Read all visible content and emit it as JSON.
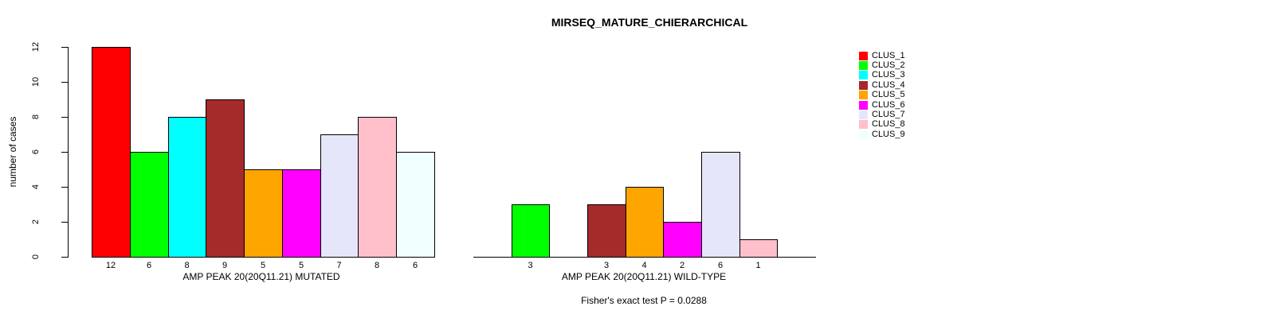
{
  "title": "MIRSEQ_MATURE_CHIERARCHICAL",
  "chart_data": [
    {
      "type": "bar",
      "panel": "mutated",
      "categories": [
        "CLUS_1",
        "CLUS_2",
        "CLUS_3",
        "CLUS_4",
        "CLUS_5",
        "CLUS_6",
        "CLUS_7",
        "CLUS_8",
        "CLUS_9"
      ],
      "values": [
        12,
        6,
        8,
        9,
        5,
        5,
        7,
        8,
        6
      ],
      "bar_labels": [
        "12",
        "6",
        "8",
        "9",
        "5",
        "5",
        "7",
        "8",
        "6"
      ],
      "colors": [
        "#FF0000",
        "#00FF00",
        "#00FFFF",
        "#A52A2A",
        "#FFA500",
        "#FF00FF",
        "#E6E6FA",
        "#FFC0CB",
        "#F0FFFF"
      ],
      "xlabel": "AMP PEAK 20(20Q11.21) MUTATED",
      "ylabel": "number of cases",
      "ylim": [
        0,
        12
      ],
      "yticks": [
        "0",
        "2",
        "4",
        "6",
        "8",
        "10",
        "12"
      ],
      "grid": false,
      "bar_border_color": "#000000"
    },
    {
      "type": "bar",
      "panel": "wild-type",
      "categories": [
        "CLUS_1",
        "CLUS_2",
        "CLUS_3",
        "CLUS_4",
        "CLUS_5",
        "CLUS_6",
        "CLUS_7",
        "CLUS_8",
        "CLUS_9"
      ],
      "values": [
        0,
        3,
        0,
        3,
        4,
        2,
        6,
        1,
        0
      ],
      "bar_labels": [
        "",
        "3",
        "",
        "3",
        "4",
        "2",
        "6",
        "1",
        ""
      ],
      "colors": [
        "#FF0000",
        "#00FF00",
        "#00FFFF",
        "#A52A2A",
        "#FFA500",
        "#FF00FF",
        "#E6E6FA",
        "#FFC0CB",
        "#F0FFFF"
      ],
      "xlabel": "AMP PEAK 20(20Q11.21) WILD-TYPE",
      "ylabel": "",
      "ylim": [
        0,
        12
      ],
      "yticks": [],
      "grid": false,
      "bar_border_color": "#000000"
    }
  ],
  "legend": {
    "position": "right",
    "entries": [
      {
        "label": "CLUS_1",
        "color": "#FF0000"
      },
      {
        "label": "CLUS_2",
        "color": "#00FF00"
      },
      {
        "label": "CLUS_3",
        "color": "#00FFFF"
      },
      {
        "label": "CLUS_4",
        "color": "#A52A2A"
      },
      {
        "label": "CLUS_5",
        "color": "#FFA500"
      },
      {
        "label": "CLUS_6",
        "color": "#FF00FF"
      },
      {
        "label": "CLUS_7",
        "color": "#E6E6FA"
      },
      {
        "label": "CLUS_8",
        "color": "#FFC0CB"
      },
      {
        "label": "CLUS_9",
        "color": "#F0FFFF"
      }
    ]
  },
  "annotation": {
    "fisher_text": "Fisher's exact test P = 0.0288"
  }
}
